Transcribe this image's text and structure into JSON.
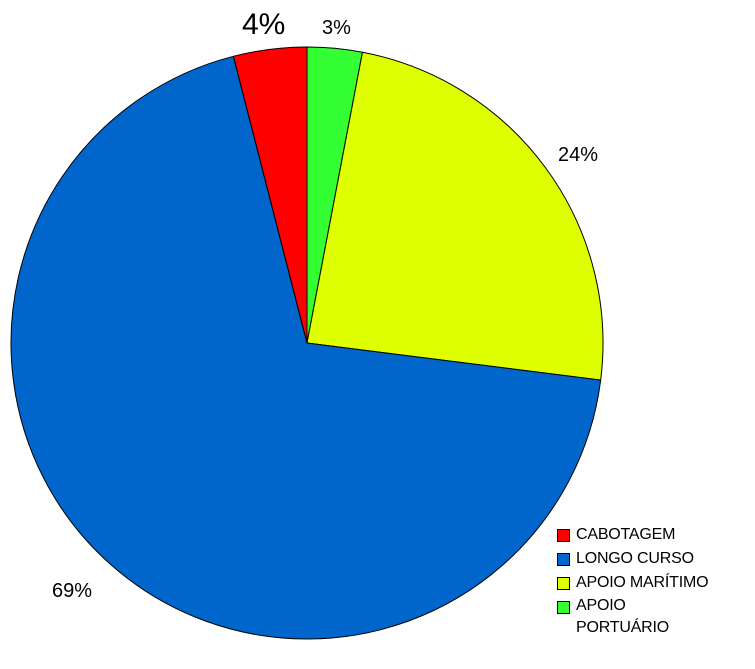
{
  "chart_data": {
    "type": "pie",
    "title": "",
    "slices": [
      {
        "label": "APOIO PORTUÁRIO",
        "value": 3,
        "value_label": "3%",
        "color": "#33ff33"
      },
      {
        "label": "APOIO MARÍTIMO",
        "value": 24,
        "value_label": "24%",
        "color": "#ddff00"
      },
      {
        "label": "LONGO CURSO",
        "value": 69,
        "value_label": "69%",
        "color": "#0066cc"
      },
      {
        "label": "CABOTAGEM",
        "value": 4,
        "value_label": "4%",
        "color": "#ff0000"
      }
    ],
    "start_angle_deg": 0,
    "direction": "clockwise",
    "legend": {
      "position": "bottom-right",
      "items": [
        {
          "label": "CABOTAGEM",
          "color": "#ff0000"
        },
        {
          "label": "LONGO CURSO",
          "color": "#0066cc"
        },
        {
          "label": "APOIO MARÍTIMO",
          "color": "#ddff00"
        },
        {
          "label": "APOIO PORTUÁRIO",
          "color": "#33ff33"
        }
      ]
    }
  }
}
